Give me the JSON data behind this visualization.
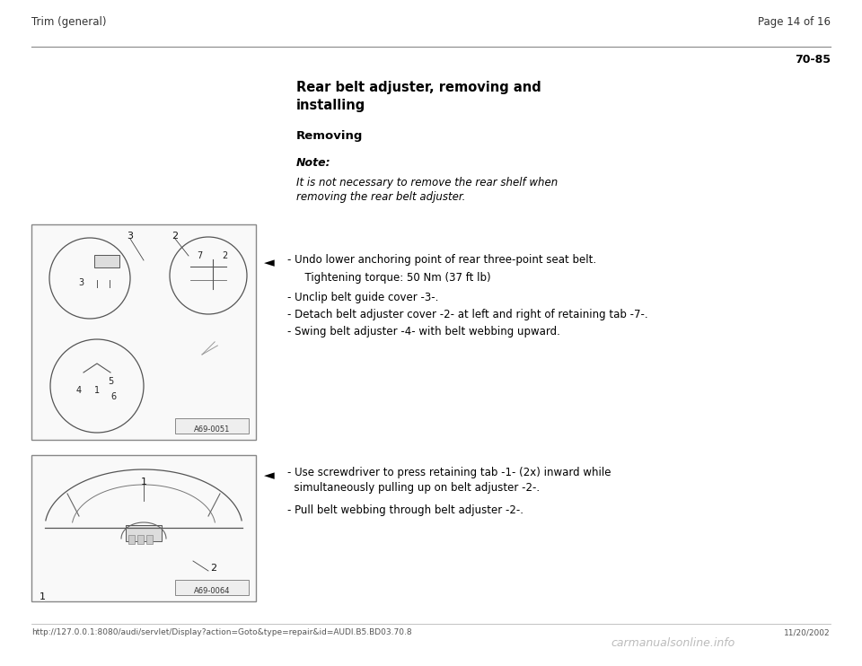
{
  "bg_color": "#ffffff",
  "page_width": 9.6,
  "page_height": 7.42,
  "header_left": "Trim (general)",
  "header_right": "Page 14 of 16",
  "page_num": "70-85",
  "title_line1": "Rear belt adjuster, removing and",
  "title_line2": "installing",
  "section_removing": "Removing",
  "note_label": "Note:",
  "note_line1": "It is not necessary to remove the rear shelf when",
  "note_line2": "removing the rear belt adjuster.",
  "arrow_symbol": "◄",
  "b1_line1": "- Undo lower anchoring point of rear three-point seat belt.",
  "b1_line2": "  Tightening torque: 50 Nm (37 ft lb)",
  "b1_line3": "- Unclip belt guide cover -3-.",
  "b1_line4": "- Detach belt adjuster cover -2- at left and right of retaining tab -7-.",
  "b1_line5": "- Swing belt adjuster -4- with belt webbing upward.",
  "b2_line1": "- Use screwdriver to press retaining tab -1- (2x) inward while",
  "b2_line2": "  simultaneously pulling up on belt adjuster -2-.",
  "b2_line3": "- Pull belt webbing through belt adjuster -2-.",
  "img1_label": "A69-0051",
  "img2_label": "A69-0064",
  "footer_url": "http://127.0.0.1:8080/audi/servlet/Display?action=Goto&type=repair&id=AUDI.B5.BD03.70.8",
  "footer_date": "11/20/2002",
  "footer_brand": "carmanualsonline.info",
  "text_color": "#000000",
  "gray_color": "#666666",
  "light_gray": "#aaaaaa"
}
